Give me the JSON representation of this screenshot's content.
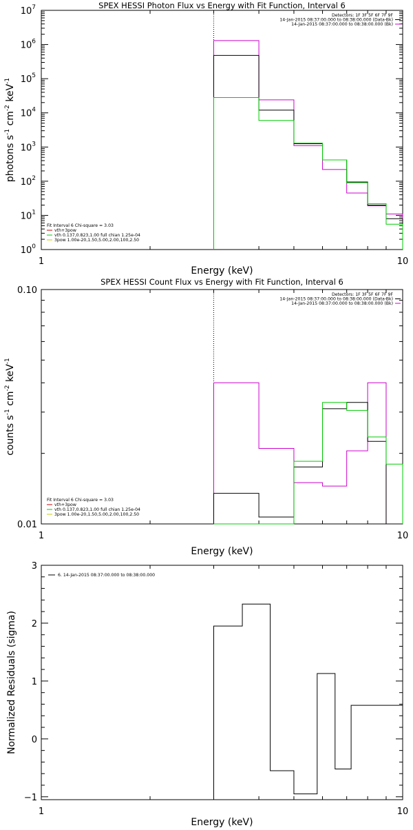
{
  "chart_data": [
    {
      "id": "photon",
      "type": "line",
      "title": "SPEX HESSI Photon Flux vs Energy with Fit Function, Interval 6",
      "xlabel": "Energy (keV)",
      "ylabel_main": "photons s",
      "ylabel_segments": [
        {
          "text": "photons s",
          "sup": false
        },
        {
          "text": "-1",
          "sup": true
        },
        {
          "text": " cm",
          "sup": false
        },
        {
          "text": "-2",
          "sup": true
        },
        {
          "text": " keV",
          "sup": false
        },
        {
          "text": "-1",
          "sup": true
        }
      ],
      "xscale": "log",
      "yscale": "log",
      "xlim": [
        1,
        10
      ],
      "ylim": [
        1,
        10000000
      ],
      "x_tick_labels": [
        {
          "value": 1,
          "label": "1"
        },
        {
          "value": 10,
          "label": "10"
        }
      ],
      "y_tick_labels": [
        {
          "value": 1,
          "base": "10",
          "exp": "0"
        },
        {
          "value": 10,
          "base": "10",
          "exp": "1"
        },
        {
          "value": 100,
          "base": "10",
          "exp": "2"
        },
        {
          "value": 1000,
          "base": "10",
          "exp": "3"
        },
        {
          "value": 10000,
          "base": "10",
          "exp": "4"
        },
        {
          "value": 100000,
          "base": "10",
          "exp": "5"
        },
        {
          "value": 1000000,
          "base": "10",
          "exp": "6"
        },
        {
          "value": 10000000,
          "base": "10",
          "exp": "7"
        }
      ],
      "vline_x": 3,
      "edges": [
        3,
        4,
        5,
        6,
        7,
        8,
        9,
        10
      ],
      "series": [
        {
          "name": "",
          "color": "#cc00cc",
          "values": [
            1300000,
            24000,
            1100,
            220,
            45,
            19,
            11
          ]
        },
        {
          "name": "",
          "color": "#000000",
          "values": [
            480000,
            12000,
            1250,
            420,
            95,
            20,
            8
          ]
        },
        {
          "name": "",
          "color": "#00cc00",
          "values": [
            28000,
            6000,
            1300,
            420,
            90,
            22,
            5.5
          ]
        }
      ],
      "legend_top": [
        {
          "text": "Detectors: 1F 3F 5F 6F 7F 9F",
          "color": ""
        },
        {
          "text": "14-Jan-2015 08:37:00.000 to 08:38:00.000 (Data-Bk)",
          "color": "#000000"
        },
        {
          "text": "14-Jan-2015 08:37:00.000 to 08:38:00.000 (Bk)",
          "color": "#cc00cc"
        }
      ],
      "legend_fit": [
        {
          "text": "Fit Interval 6   Chi-square = 3.03",
          "color": ""
        },
        {
          "text": "vth+3pow",
          "color": "#cc0000"
        },
        {
          "text": "vth 0.137,0.823,1.00  full chian 1.25e-04",
          "color": "#00cc00"
        },
        {
          "text": "3pow 1.00e-20,1.50,5.00,2.00,100,2.50",
          "color": "#cccc00"
        }
      ]
    },
    {
      "id": "count",
      "type": "line",
      "title": "SPEX HESSI Count Flux vs Energy with Fit Function, Interval 6",
      "xlabel": "Energy (keV)",
      "ylabel_main": "counts s",
      "ylabel_segments": [
        {
          "text": "counts s",
          "sup": false
        },
        {
          "text": "-1",
          "sup": true
        },
        {
          "text": " cm",
          "sup": false
        },
        {
          "text": "-2",
          "sup": true
        },
        {
          "text": " keV",
          "sup": false
        },
        {
          "text": "-1",
          "sup": true
        }
      ],
      "xscale": "log",
      "yscale": "log",
      "xlim": [
        1,
        10
      ],
      "ylim": [
        0.01,
        0.1
      ],
      "x_tick_labels": [
        {
          "value": 1,
          "label": "1"
        },
        {
          "value": 10,
          "label": "10"
        }
      ],
      "y_tick_labels": [
        {
          "value": 0.01,
          "label": "0.01"
        },
        {
          "value": 0.1,
          "label": "0.10"
        }
      ],
      "vline_x": 3,
      "edges": [
        3,
        4,
        5,
        6,
        7,
        8,
        9,
        10
      ],
      "series": [
        {
          "name": "",
          "color": "#cc00cc",
          "values": [
            0.04,
            0.021,
            0.015,
            0.0145,
            0.0205,
            0.04,
            0.01
          ]
        },
        {
          "name": "",
          "color": "#000000",
          "values": [
            0.0135,
            0.0107,
            0.0175,
            0.031,
            0.033,
            0.0225,
            0.01
          ]
        },
        {
          "name": "",
          "color": "#00cc00",
          "values": [
            0.0097,
            0.0097,
            0.0185,
            0.033,
            0.0305,
            0.0235,
            0.018
          ]
        }
      ],
      "legend_top": [
        {
          "text": "Detectors: 1F 3F 5F 6F 7F 9F",
          "color": ""
        },
        {
          "text": "14-Jan-2015 08:37:00.000 to 08:38:00.000 (Data-Bk)",
          "color": "#000000"
        },
        {
          "text": "14-Jan-2015 08:37:00.000 to 08:38:00.000 (Bk)",
          "color": "#cc00cc"
        }
      ],
      "legend_fit": [
        {
          "text": "Fit Interval 6   Chi-square = 3.03",
          "color": ""
        },
        {
          "text": "vth+3pow",
          "color": "#cc0000"
        },
        {
          "text": "vth 0.137,0.823,1.00  full chian 1.25e-04",
          "color": "#00cc00"
        },
        {
          "text": "3pow 1.00e-20,1.50,5.00,2.00,100,2.50",
          "color": "#cccc00"
        }
      ]
    },
    {
      "id": "resid",
      "type": "line",
      "title": "",
      "xlabel": "Energy (keV)",
      "ylabel_main": "Normalized Residuals (sigma)",
      "ylabel_segments": [
        {
          "text": "Normalized Residuals (sigma)",
          "sup": false
        }
      ],
      "xscale": "log",
      "yscale": "linear",
      "xlim": [
        1,
        10
      ],
      "ylim": [
        -1.05,
        3
      ],
      "x_tick_labels": [
        {
          "value": 1,
          "label": "1"
        },
        {
          "value": 10,
          "label": "10"
        }
      ],
      "y_tick_labels": [
        {
          "value": -1,
          "label": "−1"
        },
        {
          "value": 0,
          "label": "0"
        },
        {
          "value": 1,
          "label": "1"
        },
        {
          "value": 2,
          "label": "2"
        },
        {
          "value": 3,
          "label": "3"
        }
      ],
      "vline_x": null,
      "edges": [
        3,
        3.6,
        4.3,
        5,
        5.8,
        6.5,
        7.2,
        8,
        9,
        10
      ],
      "series": [
        {
          "name": "6. 14-Jan-2015 08:37:00.000 to 08:38:00.000",
          "color": "#000000",
          "values": [
            1.95,
            2.33,
            -0.55,
            -0.95,
            1.13,
            -0.52,
            0.58,
            0.58,
            0.58
          ]
        }
      ],
      "legend_top": [
        {
          "text": "6. 14-Jan-2015 08:37:00.000 to 08:38:00.000",
          "color": "#000000"
        }
      ],
      "legend_fit": []
    }
  ]
}
